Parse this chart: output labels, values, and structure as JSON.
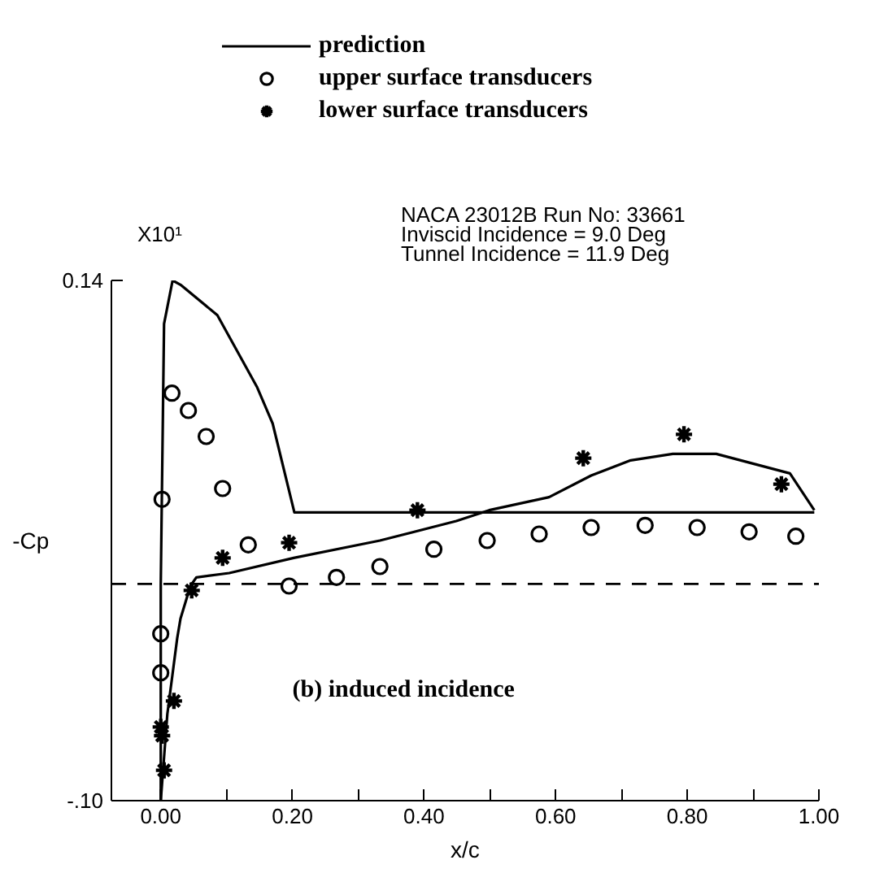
{
  "chart_data": {
    "type": "line",
    "xlabel": "x/c",
    "ylabel": "-Cp",
    "annotations": [
      "X10¹",
      "NACA 23012B    Run No: 33661",
      "Inviscid Incidence =   9.0 Deg",
      "Tunnel Incidence   =  11.9 Deg",
      "(b) induced incidence"
    ],
    "xlim": [
      -0.075,
      1.0
    ],
    "ylim": [
      -0.1,
      0.14
    ],
    "xticks": [
      {
        "value": 0,
        "label": "0.00"
      },
      {
        "value": 0.1,
        "label": null
      },
      {
        "value": 0.2,
        "label": "0.20"
      },
      {
        "value": 0.3,
        "label": null
      },
      {
        "value": 0.4,
        "label": "0.40"
      },
      {
        "value": 0.5,
        "label": null
      },
      {
        "value": 0.6,
        "label": "0.60"
      },
      {
        "value": 0.7,
        "label": null
      },
      {
        "value": 0.8,
        "label": "0.80"
      },
      {
        "value": 0.9,
        "label": null
      },
      {
        "value": 1.0,
        "label": "1.00"
      }
    ],
    "yticks": [
      {
        "value": 0.14,
        "label": "0.14"
      },
      {
        "value": -0.1,
        "label": "-.10"
      }
    ],
    "grid": false,
    "legend": "top",
    "ref_lines": [
      {
        "axis": "y",
        "value": 0,
        "color": "#000000",
        "line_style": "dashed"
      }
    ],
    "series": [
      {
        "name": "prediction",
        "color": "#000000",
        "line_style": "solid",
        "x": [
          0,
          0,
          0.005,
          0.018,
          0.03,
          0.086,
          0.146,
          0.17,
          0.203,
          0.993
        ],
        "values": [
          -0.1,
          0,
          0.12,
          0.14,
          0.138,
          0.124,
          0.091,
          0.074,
          0.033,
          0.033
        ]
      },
      {
        "color": "#000000",
        "line_style": "solid",
        "x": [
          0,
          0.01,
          0.025,
          0.03,
          0.045,
          0.054,
          0.104,
          0.202,
          0.333,
          0.449,
          0.499,
          0.59,
          0.654,
          0.714,
          0.778,
          0.844,
          0.956,
          0.993
        ],
        "values": [
          -0.1,
          -0.06,
          -0.025,
          -0.016,
          -0.001,
          0.003,
          0.005,
          0.012,
          0.02,
          0.029,
          0.034,
          0.04,
          0.05,
          0.057,
          0.06,
          0.06,
          0.051,
          0.034
        ]
      },
      {
        "name": "upper surface transducers",
        "type": "scatter",
        "marker": "circle",
        "color": "#000000",
        "x": [
          0,
          0,
          0.002,
          0.017,
          0.042,
          0.069,
          0.094,
          0.133,
          0.195,
          0.267,
          0.333,
          0.415,
          0.496,
          0.575,
          0.654,
          0.736,
          0.815,
          0.894,
          0.965
        ],
        "values": [
          -0.041,
          -0.023,
          0.039,
          0.088,
          0.08,
          0.068,
          0.044,
          0.018,
          -0.001,
          0.003,
          0.008,
          0.016,
          0.02,
          0.023,
          0.026,
          0.027,
          0.026,
          0.024,
          0.022
        ]
      },
      {
        "name": "lower surface transducers",
        "type": "scatter",
        "marker": "cross",
        "color": "#000000",
        "x": [
          0.005,
          0.002,
          0,
          0.02,
          0.047,
          0.094,
          0.195,
          0.39,
          0.642,
          0.795,
          0.943
        ],
        "values": [
          -0.086,
          -0.07,
          -0.066,
          -0.054,
          -0.003,
          0.012,
          0.019,
          0.034,
          0.058,
          0.069,
          0.046
        ]
      }
    ]
  }
}
